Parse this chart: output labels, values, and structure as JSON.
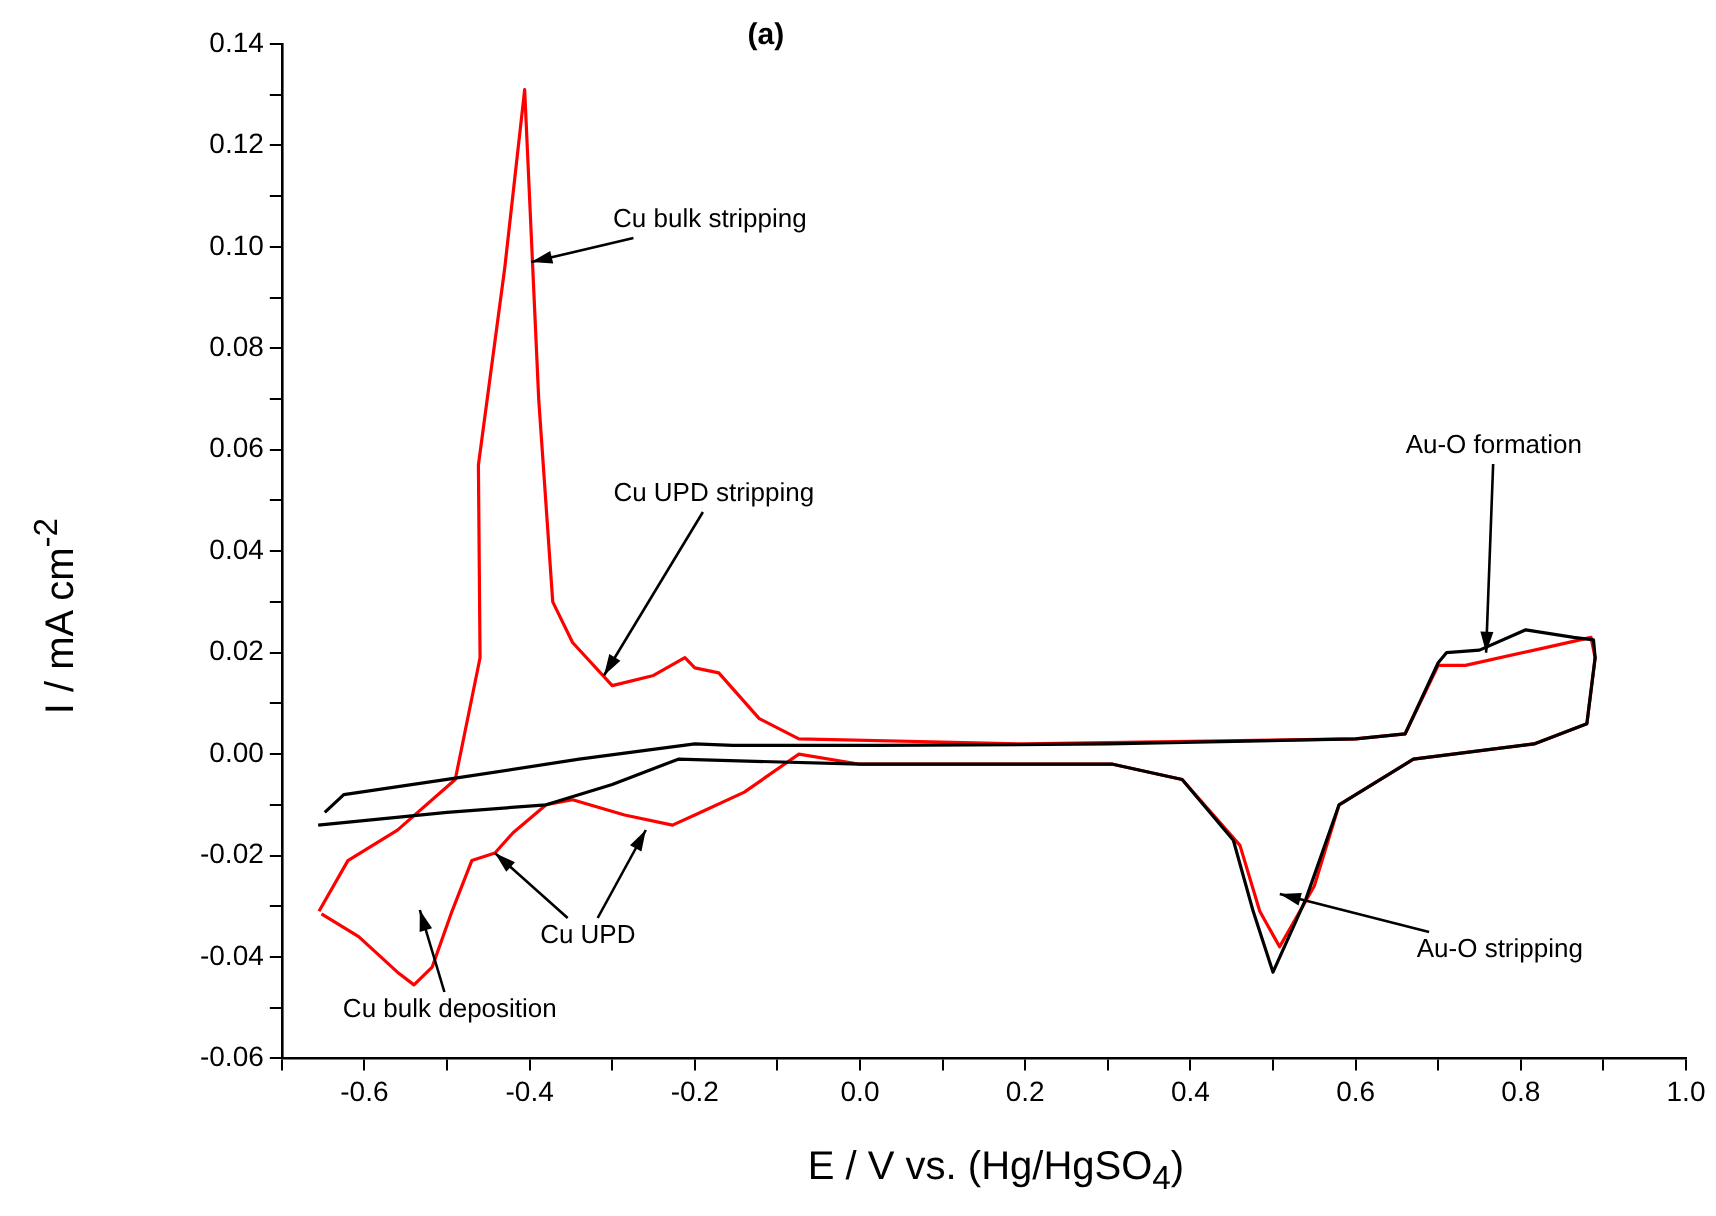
{
  "chart_data": {
    "type": "line",
    "xlabel": "E / V vs. (Hg/HgSO$_{4}$)",
    "ylabel": "I / mA cm$^{-2}$",
    "xlim": [
      -0.7,
      1.0
    ],
    "ylim": [
      -0.06,
      0.14
    ],
    "xticks": [
      {
        "value": -0.7,
        "label": null
      },
      -0.6,
      {
        "value": -0.5,
        "label": null
      },
      -0.4,
      {
        "value": -0.3,
        "label": null
      },
      -0.2,
      {
        "value": -0.1,
        "label": null
      },
      {
        "value": 0,
        "label": "0.0"
      },
      {
        "value": 0.1,
        "label": null
      },
      0.2,
      {
        "value": 0.3,
        "label": null
      },
      0.4,
      {
        "value": 0.5,
        "label": null
      },
      0.6,
      {
        "value": 0.7,
        "label": null
      },
      0.8,
      {
        "value": 0.9,
        "label": null
      },
      {
        "value": 1.0,
        "label": "1.0"
      }
    ],
    "yticks": [
      {
        "value": -0.06,
        "label": "-0.06"
      },
      {
        "value": -0.05,
        "label": null
      },
      {
        "value": -0.04,
        "label": "-0.04"
      },
      {
        "value": -0.03,
        "label": null
      },
      {
        "value": -0.02,
        "label": "-0.02"
      },
      {
        "value": -0.01,
        "label": null
      },
      {
        "value": 0,
        "label": "0.00"
      },
      {
        "value": 0.01,
        "label": null
      },
      {
        "value": 0.02,
        "label": "0.02"
      },
      {
        "value": 0.03,
        "label": null
      },
      {
        "value": 0.04,
        "label": "0.04"
      },
      {
        "value": 0.05,
        "label": null
      },
      {
        "value": 0.06,
        "label": "0.06"
      },
      {
        "value": 0.07,
        "label": null
      },
      {
        "value": 0.08,
        "label": "0.08"
      },
      {
        "value": 0.09,
        "label": null
      },
      {
        "value": 0.1,
        "label": "0.10"
      },
      {
        "value": 0.11,
        "label": null
      },
      {
        "value": 0.12,
        "label": "0.12"
      },
      {
        "value": 0.13,
        "label": null
      },
      {
        "value": 0.14,
        "label": "0.14"
      }
    ],
    "grid": false,
    "legend": false,
    "marker": "none",
    "line_style": "solid",
    "series": [
      {
        "color": "#000000",
        "x": [
          -0.648,
          -0.625,
          -0.5,
          -0.34,
          -0.2,
          -0.154,
          0.02,
          0.3,
          0.6,
          0.66,
          0.7,
          0.71,
          0.75,
          0.806,
          0.864,
          0.888,
          0.89,
          0.88,
          0.816,
          0.67,
          0.58,
          0.54,
          0.5,
          0.476,
          0.452,
          0.39,
          0.306,
          0.0,
          -0.22,
          -0.3,
          -0.38,
          -0.5,
          -0.656
        ],
        "values": [
          -0.0115,
          -0.008,
          -0.005,
          -0.001,
          0.002,
          0.0017,
          0.0017,
          0.002,
          0.003,
          0.004,
          0.018,
          0.02,
          0.0205,
          0.0245,
          0.023,
          0.0225,
          0.019,
          0.006,
          0.002,
          -0.001,
          -0.01,
          -0.0285,
          -0.043,
          -0.031,
          -0.017,
          -0.005,
          -0.002,
          -0.002,
          -0.001,
          -0.006,
          -0.01,
          -0.0115,
          -0.014
        ]
      },
      {
        "color": "#ff0000",
        "x": [
          -0.655,
          -0.62,
          -0.56,
          -0.49,
          -0.46,
          -0.462,
          -0.43,
          -0.406,
          -0.389,
          -0.372,
          -0.348,
          -0.3,
          -0.25,
          -0.212,
          -0.2,
          -0.171,
          -0.122,
          -0.074,
          0.2,
          0.6,
          0.66,
          0.7,
          0.733,
          0.83,
          0.885,
          0.89,
          0.88,
          0.816,
          0.67,
          0.58,
          0.55,
          0.508,
          0.484,
          0.46,
          0.39,
          0.306,
          0.0,
          -0.074,
          -0.14,
          -0.2,
          -0.227,
          -0.285,
          -0.348,
          -0.38,
          -0.42,
          -0.442,
          -0.47,
          -0.494,
          -0.518,
          -0.54,
          -0.56,
          -0.607,
          -0.652
        ],
        "values": [
          -0.031,
          -0.021,
          -0.015,
          -0.005,
          0.019,
          0.057,
          0.096,
          0.131,
          0.07,
          0.03,
          0.022,
          0.0135,
          0.0155,
          0.019,
          0.017,
          0.016,
          0.007,
          0.003,
          0.002,
          0.003,
          0.004,
          0.0175,
          0.0175,
          0.021,
          0.023,
          0.019,
          0.006,
          0.002,
          -0.001,
          -0.01,
          -0.026,
          -0.038,
          -0.031,
          -0.018,
          -0.005,
          -0.002,
          -0.002,
          0.0,
          -0.0075,
          -0.012,
          -0.014,
          -0.012,
          -0.009,
          -0.01,
          -0.0155,
          -0.0195,
          -0.021,
          -0.031,
          -0.042,
          -0.0455,
          -0.043,
          -0.036,
          -0.0315
        ]
      }
    ],
    "annotations": [
      "(a)",
      {
        "text": "Cu bulk stripping",
        "x": -0.398,
        "y": 0.097
      },
      {
        "text": "Cu UPD stripping",
        "x": -0.31,
        "y": 0.0155
      },
      {
        "text": "Au-O formation",
        "x": 0.758,
        "y": 0.02
      },
      "Au-O stripping",
      {
        "text": "Cu UPD",
        "x": -0.442,
        "y": -0.0195
      },
      "Cu bulk deposition"
    ]
  }
}
